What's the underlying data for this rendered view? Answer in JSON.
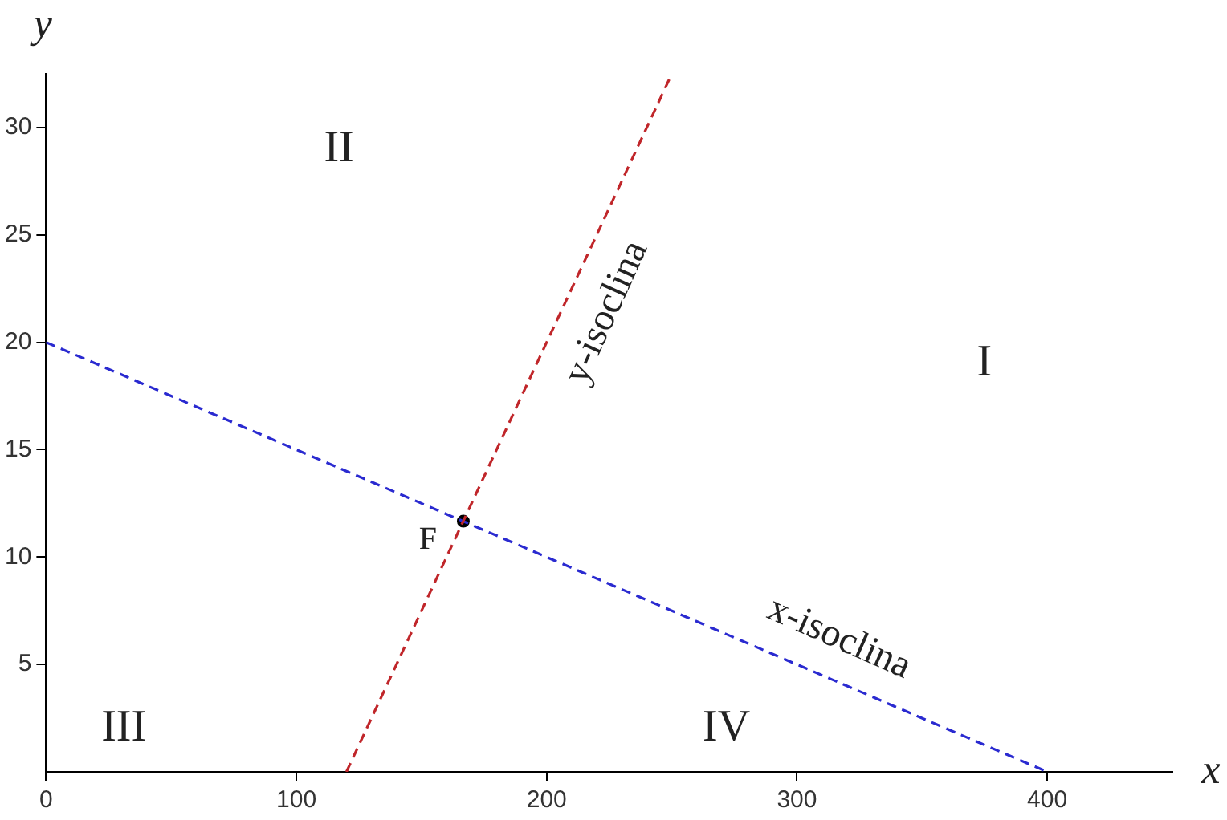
{
  "chart_data": {
    "type": "line",
    "xlabel": "x",
    "ylabel": "y",
    "xlim": [
      0,
      450
    ],
    "ylim": [
      0,
      32.5
    ],
    "xticks": [
      0,
      100,
      200,
      300,
      400
    ],
    "yticks": [
      5,
      10,
      15,
      20,
      25,
      30
    ],
    "grid": false,
    "legend": false,
    "line_style": "dashed",
    "marker": "none",
    "series": [
      {
        "color": "#c0262a",
        "x": [
          120,
          250
        ],
        "values": [
          0,
          32.5
        ]
      },
      {
        "color": "#2a2ad0",
        "x": [
          0,
          400
        ],
        "values": [
          20,
          0
        ]
      },
      {
        "type": "scatter",
        "color": "#000000",
        "x": [
          166.7
        ],
        "values": [
          11.67
        ],
        "marker": "circle"
      }
    ],
    "annotations": [
      "II",
      "I",
      "III",
      "IV",
      {
        "text": "F",
        "x": 166.7,
        "y": 11.67
      },
      "y-isoclina",
      "x-isoclina"
    ]
  }
}
